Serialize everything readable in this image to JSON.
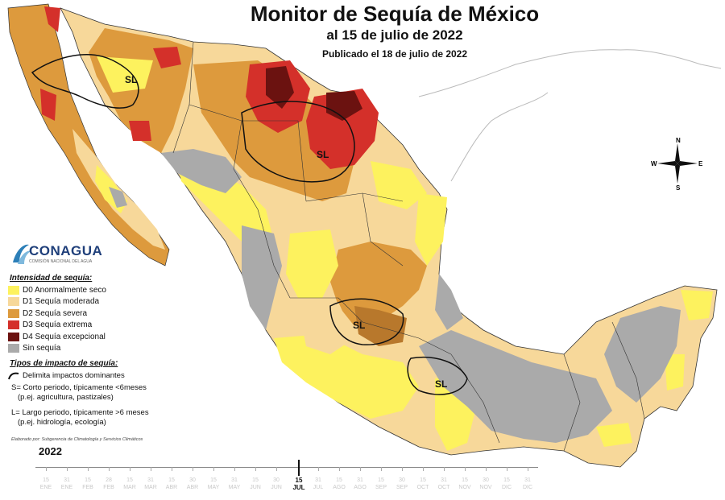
{
  "header": {
    "title": "Monitor de Sequía de México",
    "subtitle": "al 15 de julio de 2022",
    "published": "Publicado el 18 de julio de 2022"
  },
  "logo": {
    "name": "CONAGUA",
    "tagline": "COMISIÓN NACIONAL DEL AGUA"
  },
  "legend": {
    "title": "Intensidad de sequía:",
    "items": [
      {
        "label": "D0 Anormalmente seco",
        "color": "#fdf25e"
      },
      {
        "label": "D1 Sequía moderada",
        "color": "#f7d89a"
      },
      {
        "label": "D2 Sequía severa",
        "color": "#dd9a3d"
      },
      {
        "label": "D3 Sequía extrema",
        "color": "#d4302a"
      },
      {
        "label": "D4 Sequía excepcional",
        "color": "#6b1210"
      },
      {
        "label": "Sin sequía",
        "color": "#aaaaaa"
      }
    ]
  },
  "impacts": {
    "title": "Tipos de impacto de sequía:",
    "delimit": "Delimita impactos dominantes",
    "short_1": "S= Corto periodo, típicamente <6meses",
    "short_2": "(p.ej. agricultura, pastizales)",
    "long_1": "L= Largo periodo, típicamente >6 meses",
    "long_2": "(p.ej. hidrología, ecología)"
  },
  "credit": "Elaborado por: Subgerencia de Climatología y Servicios Climáticos",
  "timeline": {
    "year": "2022",
    "ticks": [
      {
        "d": "15",
        "m": "ENE"
      },
      {
        "d": "31",
        "m": "ENE"
      },
      {
        "d": "15",
        "m": "FEB"
      },
      {
        "d": "28",
        "m": "FEB"
      },
      {
        "d": "15",
        "m": "MAR"
      },
      {
        "d": "31",
        "m": "MAR"
      },
      {
        "d": "15",
        "m": "ABR"
      },
      {
        "d": "30",
        "m": "ABR"
      },
      {
        "d": "15",
        "m": "MAY"
      },
      {
        "d": "31",
        "m": "MAY"
      },
      {
        "d": "15",
        "m": "JUN"
      },
      {
        "d": "30",
        "m": "JUN"
      },
      {
        "d": "15",
        "m": "JUL"
      },
      {
        "d": "31",
        "m": "JUL"
      },
      {
        "d": "15",
        "m": "AGO"
      },
      {
        "d": "31",
        "m": "AGO"
      },
      {
        "d": "15",
        "m": "SEP"
      },
      {
        "d": "30",
        "m": "SEP"
      },
      {
        "d": "15",
        "m": "OCT"
      },
      {
        "d": "31",
        "m": "OCT"
      },
      {
        "d": "15",
        "m": "NOV"
      },
      {
        "d": "30",
        "m": "NOV"
      },
      {
        "d": "15",
        "m": "DIC"
      },
      {
        "d": "31",
        "m": "DIC"
      }
    ],
    "current_index": 12
  },
  "map_labels": [
    "SL",
    "SL",
    "SL",
    "SL"
  ],
  "compass": {
    "n": "N",
    "s": "S",
    "e": "E",
    "w": "W"
  },
  "colors": {
    "ocean": "#ffffff",
    "neighbor": "#ffffff",
    "border": "#333333",
    "impact_line": "#111111"
  }
}
